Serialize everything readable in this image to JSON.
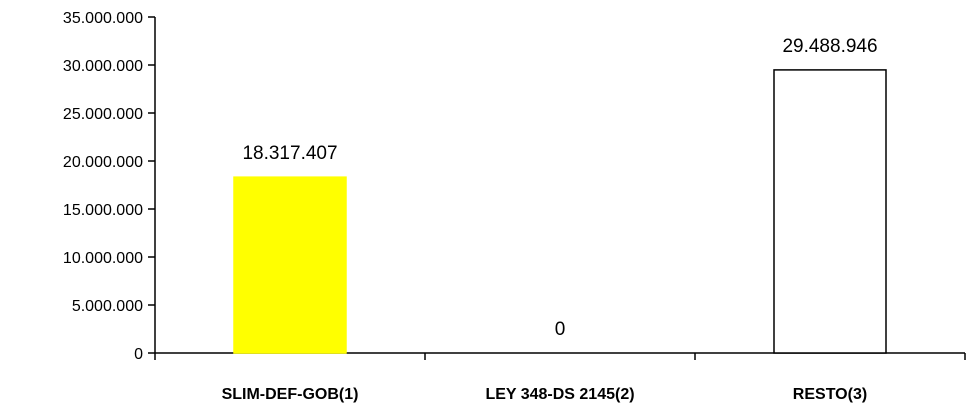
{
  "chart_data": {
    "type": "bar",
    "categories": [
      "SLIM-DEF-GOB(1)",
      "LEY 348-DS 2145(2)",
      "RESTO(3)"
    ],
    "values": [
      18317407,
      0,
      29488946
    ],
    "data_labels": [
      "18.317.407",
      "0",
      "29.488.946"
    ],
    "bar_colors": [
      "#ffff00",
      "#ffffff",
      "#ffffff"
    ],
    "bar_borders": [
      "#ffff00",
      "#000000",
      "#000000"
    ],
    "ylim": [
      0,
      35000000
    ],
    "yticks": [
      0,
      5000000,
      10000000,
      15000000,
      20000000,
      25000000,
      30000000,
      35000000
    ],
    "ytick_labels": [
      "0",
      "5.000.000",
      "10.000.000",
      "15.000.000",
      "20.000.000",
      "25.000.000",
      "30.000.000",
      "35.000.000"
    ],
    "grid": false,
    "legend": "none"
  }
}
